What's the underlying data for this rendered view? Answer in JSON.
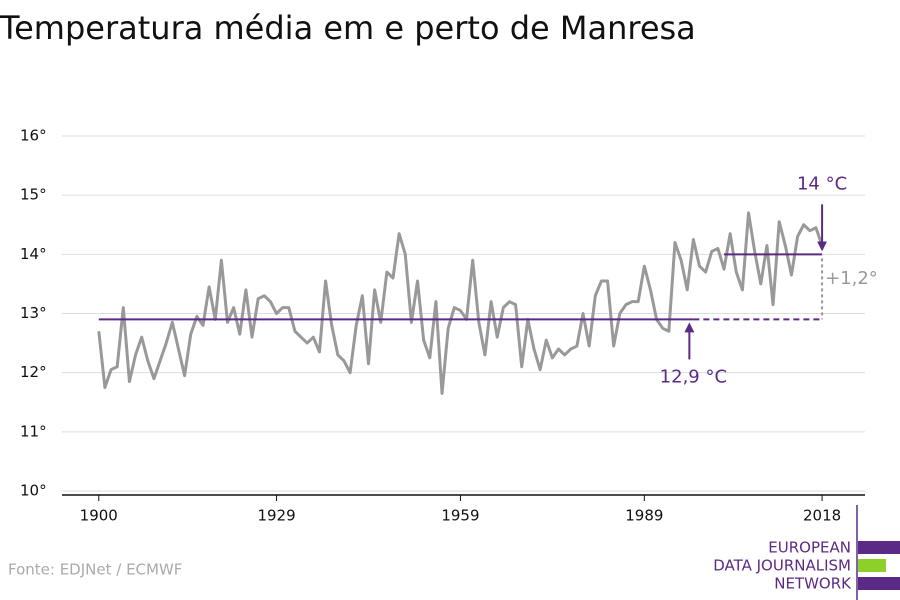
{
  "chart_data": {
    "type": "line",
    "title": "Temperatura média em e perto de Manresa",
    "source": "Fonte: EDJNet / ECMWF",
    "logo": [
      "EUROPEAN",
      "DATA JOURNALISM",
      "NETWORK"
    ],
    "x": [
      1900,
      1901,
      1902,
      1903,
      1904,
      1905,
      1906,
      1907,
      1908,
      1909,
      1910,
      1911,
      1912,
      1913,
      1914,
      1915,
      1916,
      1917,
      1918,
      1919,
      1920,
      1921,
      1922,
      1923,
      1924,
      1925,
      1926,
      1927,
      1928,
      1929,
      1930,
      1931,
      1932,
      1933,
      1934,
      1935,
      1936,
      1937,
      1938,
      1939,
      1940,
      1941,
      1942,
      1943,
      1944,
      1945,
      1946,
      1947,
      1948,
      1949,
      1950,
      1951,
      1952,
      1953,
      1954,
      1955,
      1956,
      1957,
      1958,
      1959,
      1960,
      1961,
      1962,
      1963,
      1964,
      1965,
      1966,
      1967,
      1968,
      1969,
      1970,
      1971,
      1972,
      1973,
      1974,
      1975,
      1976,
      1977,
      1978,
      1979,
      1980,
      1981,
      1982,
      1983,
      1984,
      1985,
      1986,
      1987,
      1988,
      1989,
      1990,
      1991,
      1992,
      1993,
      1994,
      1995,
      1996,
      1997,
      1998,
      1999,
      2000,
      2001,
      2002,
      2003,
      2004,
      2005,
      2006,
      2007,
      2008,
      2009,
      2010,
      2011,
      2012,
      2013,
      2014,
      2015,
      2016,
      2017,
      2018
    ],
    "series": [
      {
        "color": "#999999",
        "values": [
          12.7,
          11.75,
          12.05,
          12.1,
          13.1,
          11.85,
          12.3,
          12.6,
          12.2,
          11.9,
          12.2,
          12.5,
          12.85,
          12.4,
          11.95,
          12.65,
          12.95,
          12.8,
          13.45,
          12.9,
          13.9,
          12.85,
          13.1,
          12.65,
          13.4,
          12.6,
          13.25,
          13.3,
          13.2,
          13.0,
          13.1,
          13.1,
          12.7,
          12.6,
          12.5,
          12.6,
          12.35,
          13.55,
          12.8,
          12.3,
          12.2,
          12.0,
          12.8,
          13.3,
          12.15,
          13.4,
          12.85,
          13.7,
          13.6,
          14.35,
          14.0,
          12.85,
          13.55,
          12.55,
          12.25,
          13.2,
          11.65,
          12.75,
          13.1,
          13.05,
          12.9,
          13.9,
          12.85,
          12.3,
          13.2,
          12.6,
          13.1,
          13.2,
          13.15,
          12.1,
          12.9,
          12.4,
          12.05,
          12.55,
          12.25,
          12.4,
          12.3,
          12.4,
          12.45,
          13.0,
          12.45,
          13.3,
          13.55,
          13.55,
          12.45,
          13.0,
          13.15,
          13.2,
          13.2,
          13.8,
          13.4,
          12.9,
          12.75,
          12.7,
          14.2,
          13.9,
          13.4,
          14.25,
          13.8,
          13.7,
          14.05,
          14.1,
          13.75,
          14.35,
          13.7,
          13.4,
          14.7,
          14.05,
          13.5,
          14.15,
          13.15,
          14.55,
          14.15,
          13.65,
          14.3,
          14.5,
          14.4,
          14.45,
          14.15
        ]
      }
    ],
    "reference_lines": [
      {
        "value": 12.9,
        "label": "12,9 °C",
        "from": 1900,
        "dashed_from": 1997,
        "to": 2018,
        "color": "#5b2a86"
      },
      {
        "value": 14,
        "label": "14 °C",
        "from": 2002,
        "to": 2018,
        "color": "#5b2a86"
      }
    ],
    "difference": {
      "value": 1.2,
      "label": "+1,2°",
      "color": "#999999"
    },
    "xlim": [
      1894,
      2025
    ],
    "ylim": [
      10,
      16
    ],
    "xticks": [
      1900,
      1929,
      1959,
      1989,
      2018
    ],
    "yticks": [
      {
        "value": 10,
        "label": "10°"
      },
      {
        "value": 11,
        "label": "11°"
      },
      {
        "value": 12,
        "label": "12°"
      },
      {
        "value": 13,
        "label": "13°"
      },
      {
        "value": 14,
        "label": "14°"
      },
      {
        "value": 15,
        "label": "15°"
      },
      {
        "value": 16,
        "label": "16°"
      }
    ],
    "grid": true
  }
}
